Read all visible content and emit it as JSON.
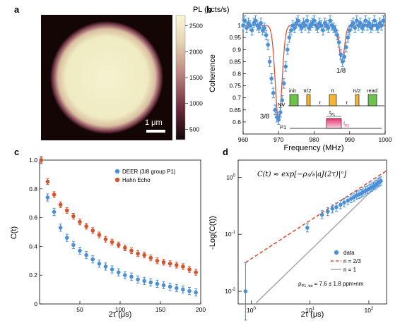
{
  "panel_labels": {
    "a": "a",
    "b": "b",
    "c": "c",
    "d": "d"
  },
  "colors": {
    "blue": "#4a90d9",
    "orange": "#d9532a",
    "fitline": "#e0462a",
    "gray": "#a8a8a8",
    "ttl": "#e8326e"
  },
  "chart_data": [
    {
      "panel": "a",
      "type": "heatmap",
      "title": "PL (kcts/s)",
      "colorbar_ticks": [
        "2500",
        "2000",
        "1500",
        "1000",
        "500"
      ],
      "colorbar_range": [
        300,
        2700
      ],
      "scale_bar_label": "1 μm",
      "colors": {
        "low": "#120606",
        "mid": "#8a4a5a",
        "high": "#f4f3cf"
      }
    },
    {
      "panel": "b",
      "type": "scatter",
      "xlabel": "Frequency (MHz)",
      "ylabel": "Coherence",
      "xlim": [
        960,
        1000
      ],
      "ylim": [
        0.55,
        1.05
      ],
      "xticks": [
        "960",
        "970",
        "980",
        "990",
        "1000"
      ],
      "yticks": [
        "1",
        "0.95",
        "0.9",
        "0.85",
        "0.8",
        "0.75",
        "0.7",
        "0.65",
        "0.6"
      ],
      "annotations": {
        "dip_38": "3/8",
        "dip_18": "1/8"
      },
      "fit_dips": [
        {
          "center": 970.0,
          "depth": 0.39,
          "width": 0.95
        },
        {
          "center": 987.8,
          "depth": 0.15,
          "width": 0.75
        }
      ],
      "x": [
        960.0,
        960.5,
        961.0,
        961.5,
        962.0,
        962.5,
        963.0,
        963.5,
        964.0,
        964.5,
        965.0,
        965.5,
        966.0,
        966.5,
        967.0,
        967.5,
        968.0,
        968.5,
        969.0,
        969.5,
        970.0,
        970.5,
        971.0,
        971.5,
        972.0,
        972.5,
        973.0,
        973.5,
        974.0,
        974.5,
        975.0,
        975.5,
        976.0,
        976.5,
        977.0,
        977.5,
        978.0,
        978.5,
        979.0,
        979.5,
        980.0,
        980.5,
        981.0,
        981.5,
        982.0,
        982.5,
        983.0,
        983.5,
        984.0,
        984.5,
        985.0,
        985.5,
        986.0,
        986.5,
        987.0,
        987.5,
        988.0,
        988.5,
        989.0,
        989.5,
        990.0,
        990.5,
        991.0,
        991.5,
        992.0,
        992.5,
        993.0,
        993.5,
        994.0,
        994.5,
        995.0,
        995.5,
        996.0,
        996.5,
        997.0,
        997.5,
        998.0,
        998.5,
        999.0,
        999.5
      ],
      "y": [
        1.0,
        1.02,
        0.99,
        1.01,
        1.0,
        0.98,
        1.01,
        1.02,
        1.0,
        0.99,
        1.01,
        0.98,
        0.99,
        0.96,
        0.92,
        0.85,
        0.78,
        0.72,
        0.65,
        0.62,
        0.61,
        0.64,
        0.69,
        0.76,
        0.83,
        0.9,
        0.95,
        0.98,
        1.0,
        0.99,
        1.01,
        1.02,
        1.0,
        0.99,
        1.01,
        1.0,
        1.02,
        0.99,
        1.0,
        1.01,
        1.02,
        1.0,
        0.99,
        1.01,
        1.0,
        0.98,
        1.01,
        1.0,
        0.99,
        1.02,
        1.0,
        0.99,
        0.98,
        0.96,
        0.93,
        0.88,
        0.85,
        0.87,
        0.91,
        0.95,
        0.98,
        1.0,
        1.01,
        0.99,
        1.02,
        1.0,
        1.01,
        0.99,
        1.0,
        1.02,
        1.0,
        1.01,
        0.99,
        1.0,
        1.02,
        1.0,
        0.99,
        1.01,
        1.0,
        1.02
      ],
      "error": 0.02,
      "pulse_labels": {
        "init": "init",
        "pi2_a": "π/2",
        "tau_a": "τ",
        "pi": "π",
        "tau_b": "τ",
        "pi2_b": "π/2",
        "read": "read",
        "nv": "NV",
        "p1": "P1",
        "tp1": "t",
        "tp1_sub": "P1",
        "fp1": "f",
        "fp1_sub": "P1"
      }
    },
    {
      "panel": "c",
      "type": "scatter",
      "xlabel": "2τ (μs)",
      "ylabel": "C(t)",
      "xlim": [
        0,
        200
      ],
      "ylim": [
        0,
        1.0
      ],
      "xticks": [
        "50",
        "100",
        "150",
        "200"
      ],
      "yticks": [
        "0",
        "0.2",
        "0.4",
        "0.6",
        "0.8",
        "1.0"
      ],
      "series": [
        {
          "name": "DEER (3/8 group P1)",
          "x": [
            2,
            10,
            18,
            26,
            34,
            42,
            50,
            58,
            66,
            74,
            82,
            90,
            98,
            106,
            114,
            122,
            130,
            138,
            146,
            154,
            162,
            170,
            178,
            186,
            194
          ],
          "y": [
            1.0,
            0.74,
            0.64,
            0.53,
            0.46,
            0.41,
            0.37,
            0.34,
            0.31,
            0.28,
            0.26,
            0.24,
            0.22,
            0.2,
            0.19,
            0.17,
            0.16,
            0.15,
            0.14,
            0.13,
            0.12,
            0.11,
            0.1,
            0.09,
            0.08
          ],
          "error": 0.025
        },
        {
          "name": "Hahn Echo",
          "x": [
            2,
            10,
            18,
            26,
            34,
            42,
            50,
            58,
            66,
            74,
            82,
            90,
            98,
            106,
            114,
            122,
            130,
            138,
            146,
            154,
            162,
            170,
            178,
            186,
            194
          ],
          "y": [
            1.0,
            0.85,
            0.76,
            0.69,
            0.65,
            0.61,
            0.57,
            0.54,
            0.51,
            0.48,
            0.45,
            0.43,
            0.41,
            0.39,
            0.37,
            0.35,
            0.34,
            0.32,
            0.3,
            0.29,
            0.28,
            0.27,
            0.26,
            0.24,
            0.22
          ],
          "error": 0.02
        }
      ]
    },
    {
      "panel": "d",
      "type": "scatter",
      "xlabel": "2τ (μs)",
      "ylabel": "-Log(C(t))",
      "x_scale": "log",
      "y_scale": "log",
      "xlim": [
        0.6,
        200
      ],
      "ylim": [
        0.006,
        2
      ],
      "xticks": [
        "10",
        "10",
        "10"
      ],
      "xtick_exponents": [
        "0",
        "1",
        "2"
      ],
      "yticks": [
        "10",
        "10",
        "10"
      ],
      "ytick_exponents": [
        "-2",
        "-1",
        "0"
      ],
      "formula": "C(t) ≈ exp[−ρ₃/₈|aJ(2τ)|ⁿ]",
      "annotation": "ρ",
      "annotation_sub": "P1, tot",
      "annotation_value": " = 7.6 ± 1.8 ppm•nm",
      "series": [
        {
          "name": "data",
          "x": [
            0.8,
            9,
            16,
            20,
            24,
            28,
            33,
            38,
            44,
            50,
            56,
            62,
            68,
            74,
            80,
            88,
            96,
            104,
            112,
            120,
            128,
            136,
            144,
            152,
            160
          ],
          "y": [
            0.01,
            0.13,
            0.22,
            0.25,
            0.28,
            0.3,
            0.33,
            0.36,
            0.39,
            0.42,
            0.45,
            0.48,
            0.5,
            0.52,
            0.55,
            0.58,
            0.61,
            0.64,
            0.67,
            0.7,
            0.73,
            0.76,
            0.8,
            0.83,
            0.86
          ]
        },
        {
          "name": "n = 2/3",
          "x": [
            0.8,
            200
          ],
          "y": [
            0.032,
            1.3
          ]
        },
        {
          "name": "n = 1",
          "x": [
            1.2,
            150
          ],
          "y": [
            0.0062,
            0.78
          ]
        }
      ]
    }
  ]
}
